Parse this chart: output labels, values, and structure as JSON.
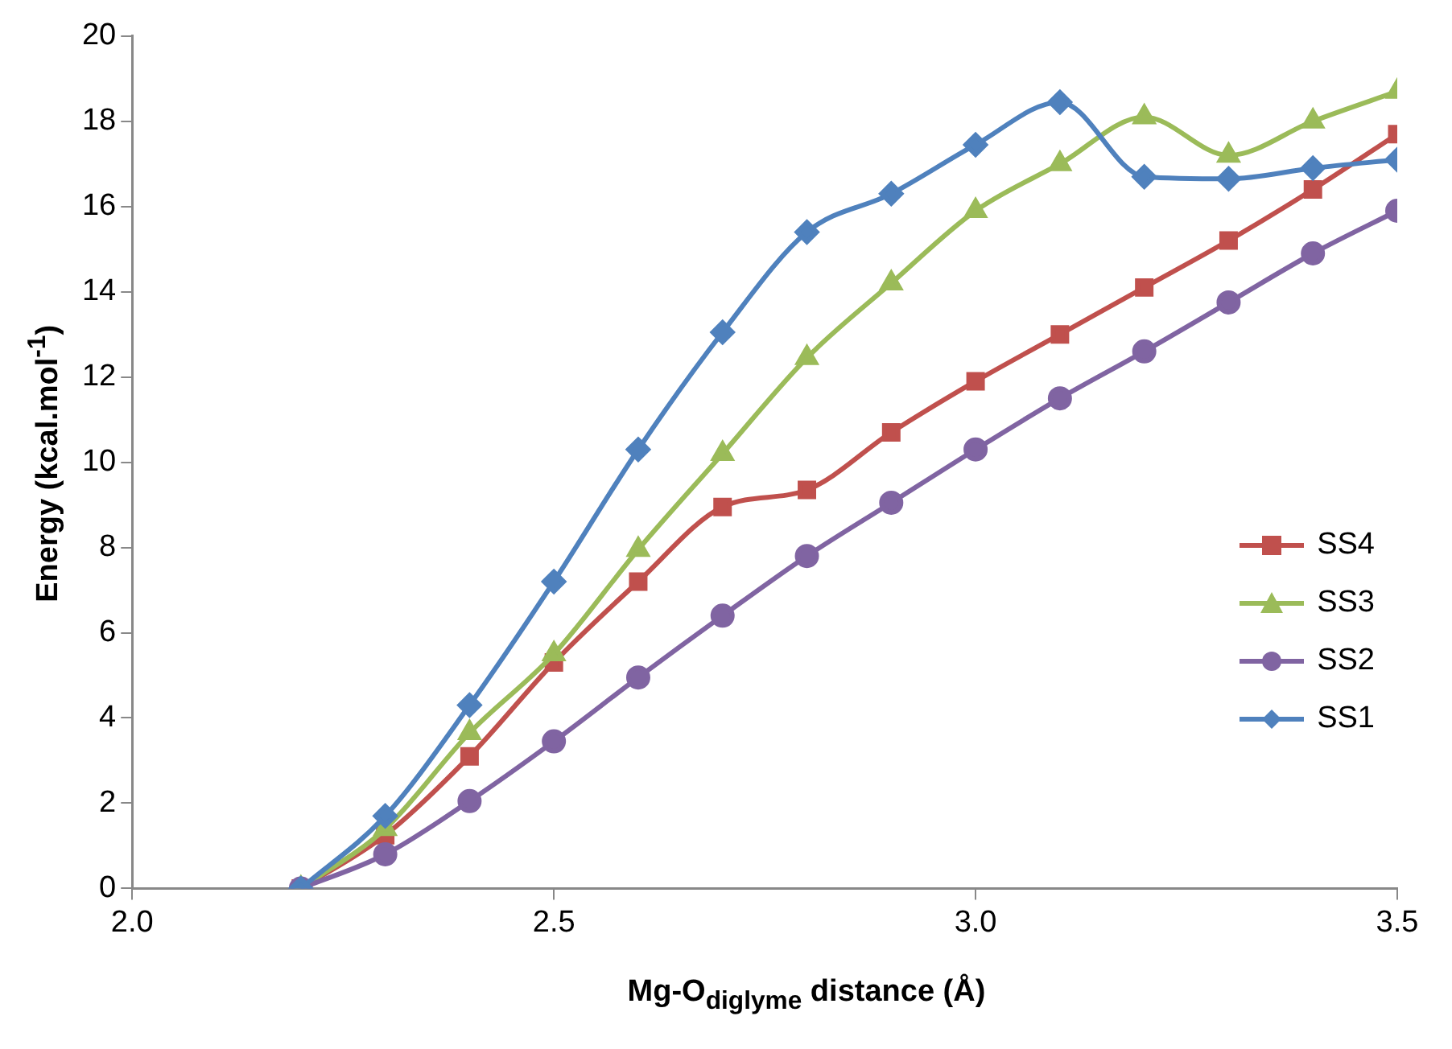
{
  "chart_data": {
    "type": "line",
    "xlabel": "Mg-O$_{diglyme}$ distance (Å)",
    "ylabel": "Energy (kcal.mol$^{-1}$)",
    "x": [
      2.2,
      2.3,
      2.4,
      2.5,
      2.6,
      2.7,
      2.8,
      2.9,
      3.0,
      3.1,
      3.2,
      3.3,
      3.4,
      3.5
    ],
    "series": [
      {
        "name": "SS4",
        "color": "#c0504d",
        "marker": "square",
        "values": [
          0,
          1.25,
          3.1,
          5.3,
          7.2,
          8.95,
          9.35,
          10.7,
          11.9,
          13.0,
          14.1,
          15.2,
          16.4,
          17.7
        ]
      },
      {
        "name": "SS3",
        "color": "#9bbb59",
        "marker": "triangle",
        "values": [
          0,
          1.4,
          3.65,
          5.5,
          7.95,
          10.2,
          12.45,
          14.2,
          15.9,
          17.0,
          18.1,
          17.2,
          18.0,
          18.7
        ]
      },
      {
        "name": "SS2",
        "color": "#8064a2",
        "marker": "circle",
        "values": [
          0,
          0.8,
          2.05,
          3.45,
          4.95,
          6.4,
          7.8,
          9.05,
          10.3,
          11.5,
          12.6,
          13.75,
          14.9,
          15.9
        ]
      },
      {
        "name": "SS1",
        "color": "#4f81bd",
        "marker": "diamond",
        "values": [
          0,
          1.7,
          4.3,
          7.2,
          10.3,
          13.05,
          15.4,
          16.3,
          17.45,
          18.45,
          16.7,
          16.65,
          16.9,
          17.1
        ]
      }
    ],
    "xlim": [
      2.0,
      3.5
    ],
    "xticks": [
      {
        "value": 2.0,
        "label": "2.0"
      },
      {
        "value": 2.5,
        "label": "2.5"
      },
      {
        "value": 3.0,
        "label": "3.0"
      },
      {
        "value": 3.5,
        "label": "3.5"
      }
    ],
    "ylim": [
      0,
      20
    ],
    "yticks": [
      0,
      2,
      4,
      6,
      8,
      10,
      12,
      14,
      16,
      18,
      20
    ],
    "legend": "right"
  }
}
